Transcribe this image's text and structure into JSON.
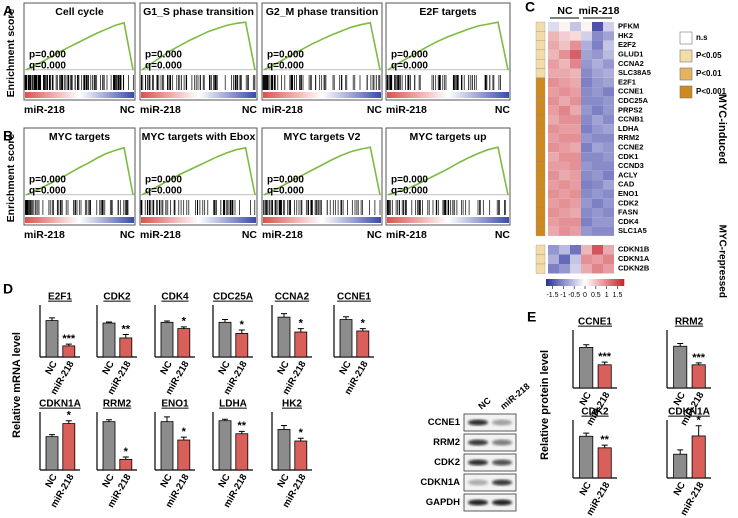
{
  "panel_labels": [
    "A",
    "B",
    "C",
    "D",
    "E"
  ],
  "blot": {
    "columns": [
      "NC",
      "miR-218"
    ],
    "rows": [
      "CCNE1",
      "RRM2",
      "CDK2",
      "CDKN1A",
      "GAPDH"
    ]
  },
  "chart_data": [
    {
      "type": "line",
      "title": "Cell cycle",
      "ylabel": "Enrichment score",
      "annotations": [
        "p=0.000",
        "q=0.000"
      ],
      "xlabels": [
        "miR-218",
        "NC"
      ],
      "values": [
        0,
        0.07,
        0.14,
        0.22,
        0.3,
        0.37,
        0.44,
        0.51,
        0.58,
        0.64,
        0.7,
        0.74,
        0
      ],
      "ylim": [
        -0.05,
        0.8
      ],
      "color": "#7dbb42"
    },
    {
      "type": "line",
      "title": "G1_S phase transition",
      "annotations": [
        "p=0.000",
        "q=0.000"
      ],
      "xlabels": [
        "miR-218",
        "NC"
      ],
      "values": [
        0,
        0.1,
        0.2,
        0.3,
        0.38,
        0.46,
        0.53,
        0.6,
        0.65,
        0.7,
        0.73,
        0.75,
        0
      ],
      "ylim": [
        -0.05,
        0.8
      ],
      "color": "#7dbb42"
    },
    {
      "type": "line",
      "title": "G2_M phase transition",
      "annotations": [
        "p=0.000",
        "q=0.000"
      ],
      "xlabels": [
        "miR-218",
        "NC"
      ],
      "values": [
        0,
        0.08,
        0.16,
        0.25,
        0.33,
        0.41,
        0.48,
        0.55,
        0.61,
        0.67,
        0.71,
        0.74,
        0
      ],
      "ylim": [
        -0.05,
        0.8
      ],
      "color": "#7dbb42"
    },
    {
      "type": "line",
      "title": "E2F targets",
      "annotations": [
        "p=0.000",
        "q=0.000"
      ],
      "xlabels": [
        "miR-218",
        "NC"
      ],
      "values": [
        0,
        0.1,
        0.19,
        0.28,
        0.37,
        0.45,
        0.52,
        0.58,
        0.64,
        0.69,
        0.72,
        0.75,
        0
      ],
      "ylim": [
        -0.05,
        0.8
      ],
      "color": "#7dbb42"
    },
    {
      "type": "line",
      "title": "MYC targets",
      "ylabel": "Enrichment score",
      "annotations": [
        "p=0.000",
        "q=0.000"
      ],
      "xlabels": [
        "miR-218",
        "NC"
      ],
      "values": [
        0,
        0.06,
        0.13,
        0.2,
        0.27,
        0.35,
        0.43,
        0.5,
        0.58,
        0.65,
        0.7,
        0.74,
        0
      ],
      "ylim": [
        -0.05,
        0.8
      ],
      "color": "#7dbb42"
    },
    {
      "type": "line",
      "title": "MYC targets with Ebox",
      "annotations": [
        "p=0.000",
        "q=0.000"
      ],
      "xlabels": [
        "miR-218",
        "NC"
      ],
      "values": [
        0,
        0.08,
        0.16,
        0.24,
        0.32,
        0.39,
        0.46,
        0.53,
        0.6,
        0.66,
        0.71,
        0.74,
        0
      ],
      "ylim": [
        -0.05,
        0.8
      ],
      "color": "#7dbb42"
    },
    {
      "type": "line",
      "title": "MYC targets V2",
      "annotations": [
        "p=0.000",
        "q=0.000"
      ],
      "xlabels": [
        "miR-218",
        "NC"
      ],
      "values": [
        0,
        0.07,
        0.15,
        0.23,
        0.31,
        0.39,
        0.47,
        0.55,
        0.62,
        0.68,
        0.72,
        0.75,
        0
      ],
      "ylim": [
        -0.05,
        0.8
      ],
      "color": "#7dbb42"
    },
    {
      "type": "line",
      "title": "MYC targets up",
      "annotations": [
        "p=0.000",
        "q=0.000"
      ],
      "xlabels": [
        "miR-218",
        "NC"
      ],
      "values": [
        0,
        0.05,
        0.1,
        0.17,
        0.25,
        0.33,
        0.41,
        0.5,
        0.58,
        0.65,
        0.71,
        0.75,
        0
      ],
      "ylim": [
        -0.05,
        0.8
      ],
      "color": "#7dbb42"
    },
    {
      "type": "heatmap",
      "column_groups": [
        "NC",
        "miR-218"
      ],
      "legend_labels": [
        "n.s",
        "P<0.05",
        "P<0.01",
        "P<0.001"
      ],
      "legend_colors": [
        "#ffffff",
        "#f3dca8",
        "#e6b45e",
        "#cf8a1f"
      ],
      "clim": [
        -1.8,
        1.8
      ],
      "colorbar_ticks": [
        -1.5,
        -1,
        -0.5,
        0,
        0.5,
        1,
        1.5
      ],
      "colors": [
        "#2b2f9e",
        "#ffffff",
        "#c8232c"
      ],
      "row_groups": [
        {
          "name": "MYC-induced",
          "color": "#000000",
          "rows": [
            "PFKM",
            "HK2",
            "E2F2",
            "GLUD1",
            "CCNA2",
            "SLC38A5",
            "E2F1",
            "CCNE1",
            "CDC25A",
            "PRPS2",
            "CCNB1",
            "LDHA",
            "RRM2",
            "CCNE2",
            "CDK1",
            "CCND3",
            "ACLY",
            "CAD",
            "ENO1",
            "CDK2",
            "FASN",
            "CDK4",
            "SLC1A5"
          ],
          "significance": [
            1,
            1,
            1,
            1,
            1,
            1,
            3,
            3,
            3,
            3,
            3,
            3,
            3,
            3,
            3,
            3,
            3,
            3,
            3,
            3,
            3,
            3,
            3
          ],
          "values": [
            [
              -0.3,
              0.1,
              -0.5,
              0.1,
              -1.5,
              -0.4
            ],
            [
              0.6,
              0.4,
              0.3,
              -0.4,
              -1.0,
              -0.8
            ],
            [
              0.7,
              0.5,
              0.9,
              -0.7,
              -1.1,
              -0.5
            ],
            [
              0.6,
              0.9,
              1.3,
              -0.8,
              -0.9,
              -0.6
            ],
            [
              0.8,
              0.6,
              1.0,
              -0.9,
              -0.7,
              -0.9
            ],
            [
              0.7,
              0.7,
              0.6,
              -1.0,
              -0.8,
              -0.7
            ],
            [
              0.9,
              0.8,
              0.7,
              -1.1,
              -0.9,
              -0.8
            ],
            [
              0.8,
              0.9,
              0.8,
              -1.0,
              -0.9,
              -1.1
            ],
            [
              0.9,
              0.7,
              0.9,
              -1.0,
              -1.0,
              -0.9
            ],
            [
              0.8,
              1.0,
              0.7,
              -0.9,
              -1.1,
              -0.9
            ],
            [
              0.7,
              0.9,
              0.9,
              -1.0,
              -0.8,
              -1.0
            ],
            [
              0.9,
              0.8,
              0.8,
              -1.1,
              -0.9,
              -0.8
            ],
            [
              0.8,
              0.9,
              0.9,
              -0.9,
              -1.0,
              -1.0
            ],
            [
              0.9,
              0.8,
              0.7,
              -1.1,
              -0.8,
              -0.9
            ],
            [
              0.7,
              0.9,
              0.9,
              -1.0,
              -1.0,
              -0.9
            ],
            [
              0.8,
              0.8,
              0.9,
              -0.9,
              -1.0,
              -1.0
            ],
            [
              0.9,
              0.7,
              0.8,
              -1.0,
              -0.9,
              -1.1
            ],
            [
              0.8,
              0.9,
              0.8,
              -1.1,
              -1.0,
              -0.8
            ],
            [
              0.9,
              0.8,
              0.9,
              -1.0,
              -0.9,
              -1.0
            ],
            [
              0.8,
              0.9,
              0.8,
              -0.9,
              -1.1,
              -0.9
            ],
            [
              0.9,
              0.8,
              0.7,
              -1.0,
              -0.9,
              -1.0
            ],
            [
              0.8,
              0.9,
              0.9,
              -1.1,
              -0.9,
              -0.9
            ],
            [
              0.7,
              0.9,
              0.8,
              -0.9,
              -1.0,
              -1.0
            ]
          ]
        },
        {
          "name": "MYC-repressed",
          "color": "#c0282a",
          "rows": [
            "CDKN1B",
            "CDKN1A",
            "CDKN2B"
          ],
          "significance": [
            1,
            1,
            1
          ],
          "values": [
            [
              -0.9,
              -0.6,
              -1.2,
              0.6,
              1.4,
              0.7
            ],
            [
              -0.7,
              -1.3,
              -0.5,
              0.9,
              0.8,
              1.0
            ],
            [
              -1.1,
              -0.9,
              -0.4,
              0.7,
              1.0,
              0.8
            ]
          ]
        }
      ]
    },
    {
      "type": "bar",
      "title": "E2F1",
      "ylabel": "Relative mRNA level",
      "categories": [
        "NC",
        "miR-218"
      ],
      "values": [
        1.05,
        0.32
      ],
      "errors": [
        0.08,
        0.05
      ],
      "significance": "***",
      "ylim": [
        0,
        1.5
      ],
      "colors": [
        "#8c8c8c",
        "#d9605a"
      ]
    },
    {
      "type": "bar",
      "title": "CDK2",
      "categories": [
        "NC",
        "miR-218"
      ],
      "values": [
        0.98,
        0.55
      ],
      "errors": [
        0.03,
        0.1
      ],
      "significance": "**",
      "ylim": [
        0,
        1.5
      ],
      "colors": [
        "#8c8c8c",
        "#d9605a"
      ]
    },
    {
      "type": "bar",
      "title": "CDK4",
      "categories": [
        "NC",
        "miR-218"
      ],
      "values": [
        1.0,
        0.82
      ],
      "errors": [
        0.04,
        0.05
      ],
      "significance": "*",
      "ylim": [
        0,
        1.5
      ],
      "colors": [
        "#8c8c8c",
        "#d9605a"
      ]
    },
    {
      "type": "bar",
      "title": "CDC25A",
      "categories": [
        "NC",
        "miR-218"
      ],
      "values": [
        1.0,
        0.68
      ],
      "errors": [
        0.08,
        0.1
      ],
      "significance": "*",
      "ylim": [
        0,
        1.5
      ],
      "colors": [
        "#8c8c8c",
        "#d9605a"
      ]
    },
    {
      "type": "bar",
      "title": "CCNA2",
      "categories": [
        "NC",
        "miR-218"
      ],
      "values": [
        1.15,
        0.72
      ],
      "errors": [
        0.1,
        0.1
      ],
      "significance": "*",
      "ylim": [
        0,
        1.5
      ],
      "colors": [
        "#8c8c8c",
        "#d9605a"
      ]
    },
    {
      "type": "bar",
      "title": "CCNE1",
      "categories": [
        "NC",
        "miR-218"
      ],
      "values": [
        1.08,
        0.75
      ],
      "errors": [
        0.08,
        0.07
      ],
      "significance": "*",
      "ylim": [
        0,
        1.5
      ],
      "colors": [
        "#8c8c8c",
        "#d9605a"
      ]
    },
    {
      "type": "bar",
      "title": "CDKN1A",
      "categories": [
        "NC",
        "miR-218"
      ],
      "values": [
        1.15,
        1.6
      ],
      "errors": [
        0.07,
        0.1
      ],
      "significance": "*",
      "ylim": [
        0,
        2
      ],
      "colors": [
        "#8c8c8c",
        "#d9605a"
      ]
    },
    {
      "type": "bar",
      "title": "RRM2",
      "categories": [
        "NC",
        "miR-218"
      ],
      "values": [
        1.0,
        0.22
      ],
      "errors": [
        0.04,
        0.05
      ],
      "significance": "*",
      "ylim": [
        0,
        1.2
      ],
      "colors": [
        "#8c8c8c",
        "#d9605a"
      ]
    },
    {
      "type": "bar",
      "title": "ENO1",
      "categories": [
        "NC",
        "miR-218"
      ],
      "values": [
        1.0,
        0.62
      ],
      "errors": [
        0.1,
        0.06
      ],
      "significance": "*",
      "ylim": [
        0,
        1.2
      ],
      "colors": [
        "#8c8c8c",
        "#d9605a"
      ]
    },
    {
      "type": "bar",
      "title": "LDHA",
      "categories": [
        "NC",
        "miR-218"
      ],
      "values": [
        1.02,
        0.75
      ],
      "errors": [
        0.03,
        0.05
      ],
      "significance": "**",
      "ylim": [
        0,
        1.2
      ],
      "colors": [
        "#8c8c8c",
        "#d9605a"
      ]
    },
    {
      "type": "bar",
      "title": "HK2",
      "categories": [
        "NC",
        "miR-218"
      ],
      "values": [
        1.05,
        0.75
      ],
      "errors": [
        0.1,
        0.07
      ],
      "significance": "*",
      "ylim": [
        0,
        1.5
      ],
      "colors": [
        "#8c8c8c",
        "#d9605a"
      ]
    },
    {
      "type": "bar",
      "title": "CCNE1",
      "ylabel": "Relative protein level",
      "categories": [
        "NC",
        "miR-218"
      ],
      "values": [
        1.05,
        0.6
      ],
      "errors": [
        0.07,
        0.07
      ],
      "significance": "***",
      "ylim": [
        0,
        1.5
      ],
      "colors": [
        "#8c8c8c",
        "#d9605a"
      ]
    },
    {
      "type": "bar",
      "title": "RRM2",
      "categories": [
        "NC",
        "miR-218"
      ],
      "values": [
        1.08,
        0.6
      ],
      "errors": [
        0.07,
        0.05
      ],
      "significance": "***",
      "ylim": [
        0,
        1.5
      ],
      "colors": [
        "#8c8c8c",
        "#d9605a"
      ]
    },
    {
      "type": "bar",
      "title": "CDK2",
      "categories": [
        "NC",
        "miR-218"
      ],
      "values": [
        1.08,
        0.78
      ],
      "errors": [
        0.08,
        0.07
      ],
      "significance": "**",
      "ylim": [
        0,
        1.5
      ],
      "colors": [
        "#8c8c8c",
        "#d9605a"
      ]
    },
    {
      "type": "bar",
      "title": "CDKN1A",
      "categories": [
        "NC",
        "miR-218"
      ],
      "values": [
        0.82,
        1.45
      ],
      "errors": [
        0.15,
        0.35
      ],
      "significance": "*",
      "ylim": [
        0,
        2
      ],
      "colors": [
        "#8c8c8c",
        "#d9605a"
      ]
    }
  ]
}
